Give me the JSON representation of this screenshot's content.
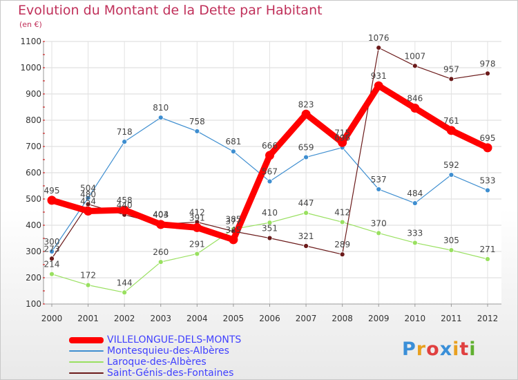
{
  "chart_data": {
    "type": "line",
    "title": "Evolution du Montant de la Dette par Habitant",
    "subtitle": "(en €)",
    "categories": [
      "2000",
      "2001",
      "2002",
      "2003",
      "2004",
      "2005",
      "2006",
      "2007",
      "2008",
      "2009",
      "2010",
      "2011",
      "2012"
    ],
    "ylim": [
      100,
      1100
    ],
    "yticks": [
      "100",
      "200",
      "300",
      "400",
      "500",
      "600",
      "700",
      "800",
      "900",
      "1000",
      "1100"
    ],
    "grid": true,
    "legend_position": "bottom-left",
    "series": [
      {
        "name": "VILLELONGUE-DELS-MONTS",
        "color": "#ff0000",
        "values": [
          495,
          454,
          458,
          403,
          391,
          345,
          666,
          823,
          715,
          931,
          846,
          761,
          695
        ],
        "labels": [
          "495",
          "454",
          "458",
          "403",
          "391",
          "345",
          "666",
          "823",
          "715",
          "931",
          "846",
          "761",
          "695"
        ]
      },
      {
        "name": "Montesquieu-des-Albères",
        "color": "#3e8ed0",
        "values": [
          300,
          504,
          718,
          810,
          758,
          681,
          567,
          659,
          696,
          537,
          484,
          592,
          533
        ],
        "labels": [
          "300",
          "504",
          "718",
          "810",
          "758",
          "681",
          "567",
          "659",
          "696",
          "537",
          "484",
          "592",
          "533"
        ]
      },
      {
        "name": "Laroque-des-Albères",
        "color": "#99e060",
        "values": [
          214,
          172,
          144,
          260,
          291,
          385,
          410,
          447,
          412,
          370,
          333,
          305,
          271
        ],
        "labels": [
          "214",
          "172",
          "144",
          "260",
          "291",
          "385",
          "410",
          "447",
          "412",
          "370",
          "333",
          "305",
          "271"
        ]
      },
      {
        "name": "Saint-Génis-des-Fontaines",
        "color": "#6b1a1a",
        "values": [
          273,
          480,
          440,
          404,
          412,
          377,
          351,
          321,
          289,
          1076,
          1007,
          957,
          978
        ],
        "labels": [
          "273",
          "480",
          "440",
          "404",
          "412",
          "377",
          "351",
          "321",
          "289",
          "1076",
          "1007",
          "957",
          "978"
        ]
      }
    ]
  },
  "logo": {
    "letters": [
      "P",
      "r",
      "o",
      "x",
      "i",
      "t",
      "i"
    ],
    "colors": [
      "#3a8fd8",
      "#e8a020",
      "#e04040",
      "#3a8fd8",
      "#e8a020",
      "#e04040",
      "#60b030"
    ]
  }
}
